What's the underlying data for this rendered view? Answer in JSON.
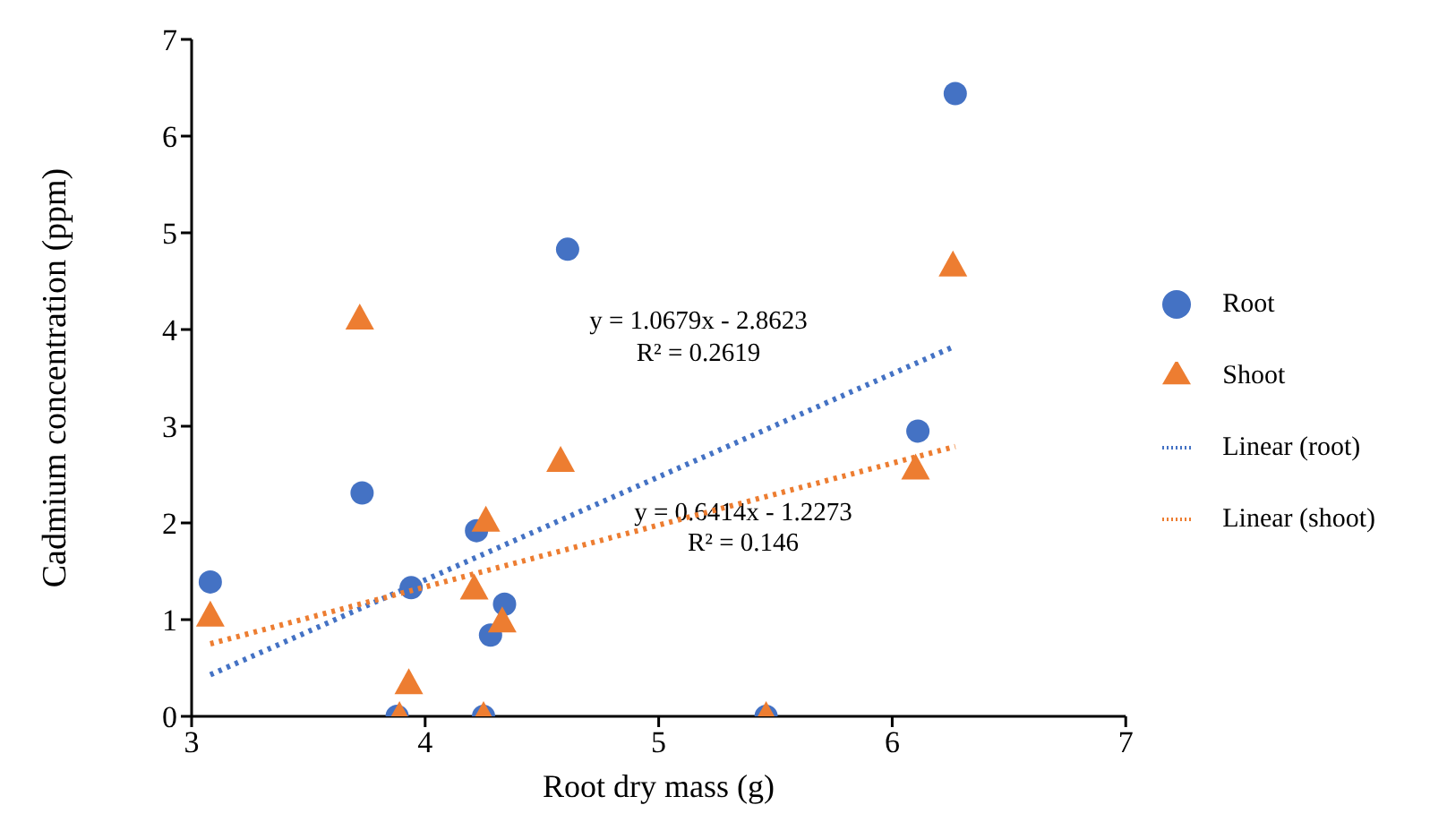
{
  "chart_data": {
    "type": "scatter",
    "xlabel": "Root dry mass (g)",
    "ylabel": "Cadmium concentration (ppm)",
    "xlim": [
      3,
      7
    ],
    "xticks": [
      3,
      4,
      5,
      6,
      7
    ],
    "ylim": [
      0,
      7
    ],
    "yticks": [
      0,
      1,
      2,
      3,
      4,
      5,
      6,
      7
    ],
    "grid": false,
    "legend": "right",
    "series": [
      {
        "name": "Root",
        "marker": "circle",
        "color": "#4472c4",
        "x": [
          3.08,
          3.73,
          3.94,
          4.22,
          4.28,
          4.34,
          3.88,
          4.25,
          5.46,
          4.61,
          6.27,
          6.11
        ],
        "values": [
          1.39,
          2.31,
          1.33,
          1.92,
          0.84,
          1.16,
          0,
          0,
          0,
          4.83,
          6.44,
          2.95
        ]
      },
      {
        "name": "Shoot",
        "marker": "triangle",
        "color": "#ed7d31",
        "x": [
          3.08,
          3.72,
          3.93,
          3.89,
          4.21,
          4.26,
          4.33,
          4.25,
          4.58,
          5.46,
          6.26,
          6.1
        ],
        "values": [
          1.04,
          4.11,
          0.34,
          0,
          1.32,
          2.02,
          0.98,
          0,
          2.64,
          0,
          4.66,
          2.56
        ]
      },
      {
        "name": "Linear (root)",
        "type": "line",
        "marker": "none",
        "line_style": "dotted",
        "color": "#4472c4",
        "x": [
          3.08,
          6.27
        ],
        "values": [
          0.43,
          3.83
        ]
      },
      {
        "name": "Linear (shoot)",
        "type": "line",
        "marker": "none",
        "line_style": "dotted",
        "color": "#ed7d31",
        "x": [
          3.08,
          6.27
        ],
        "values": [
          0.75,
          2.79
        ]
      }
    ],
    "annotations": [
      "y = 1.0679x - 2.8623",
      "R² = 0.2619",
      "y = 0.6414x - 1.2273",
      "R² = 0.146"
    ]
  }
}
